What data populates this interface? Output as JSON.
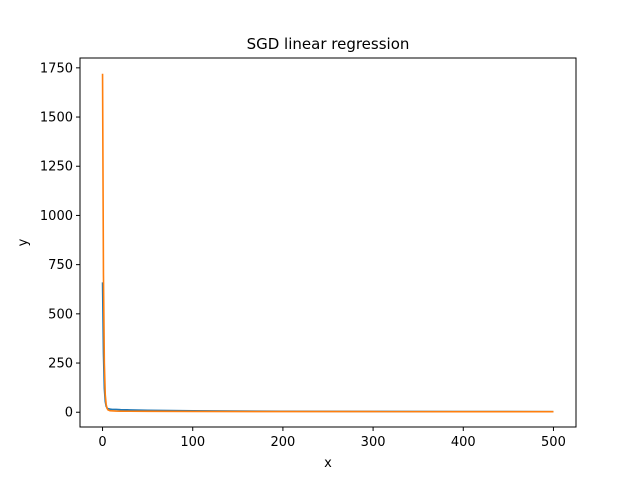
{
  "chart_data": {
    "type": "line",
    "title": "SGD linear regression",
    "xlabel": "x",
    "ylabel": "y",
    "xlim": [
      -25,
      525
    ],
    "ylim": [
      -75,
      1800
    ],
    "xticks": [
      0,
      100,
      200,
      300,
      400,
      500
    ],
    "yticks": [
      0,
      250,
      500,
      750,
      1000,
      1250,
      1500,
      1750
    ],
    "grid": false,
    "series": [
      {
        "color": "#1f77b4",
        "x": [
          0,
          1,
          2,
          3,
          4,
          5,
          6,
          8,
          10,
          15,
          20,
          30,
          50,
          100,
          200,
          300,
          400,
          500
        ],
        "y": [
          660,
          300,
          120,
          55,
          30,
          22,
          18,
          16,
          15,
          14,
          13,
          12,
          10,
          7,
          5,
          4,
          3.5,
          3
        ]
      },
      {
        "color": "#ff7f0e",
        "x": [
          0,
          1,
          2,
          3,
          4,
          5,
          6,
          8,
          10,
          15,
          20,
          30,
          50,
          100,
          200,
          300,
          400,
          500
        ],
        "y": [
          1720,
          700,
          250,
          90,
          40,
          20,
          12,
          8,
          7,
          6,
          5.5,
          5,
          4.5,
          4,
          3.5,
          3.2,
          3,
          2.8
        ]
      }
    ]
  }
}
